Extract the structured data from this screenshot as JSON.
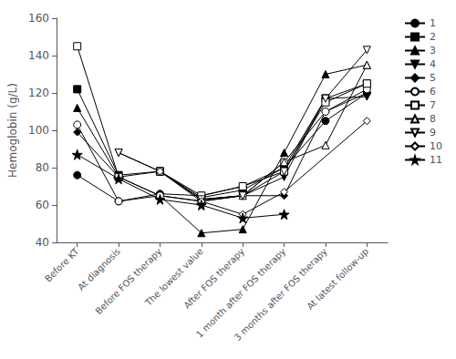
{
  "chart_data": {
    "type": "line",
    "categories": [
      "Before KT",
      "At diagnosis",
      "Before FOS therapy",
      "The lowest value",
      "After FOS therapy",
      "1 month after FOS therapy",
      "3 months after FOS therapy",
      "At latest follow-up"
    ],
    "ylabel": "Hemoglobin (g/L)",
    "ylim": [
      40,
      160
    ],
    "yticks": [
      40,
      60,
      80,
      100,
      120,
      140,
      160
    ],
    "grid": false,
    "legend": "right",
    "series": [
      {
        "name": "1",
        "color": "black",
        "marker": "circle-filled",
        "values": [
          76,
          62,
          66,
          65,
          70,
          80,
          105,
          120
        ]
      },
      {
        "name": "2",
        "color": "black",
        "marker": "square-filled",
        "values": [
          122,
          76,
          78,
          64,
          68,
          80,
          117,
          125
        ]
      },
      {
        "name": "3",
        "color": "black",
        "marker": "triangleup-filled",
        "values": [
          112,
          75,
          65,
          45,
          47,
          88,
          130,
          135
        ]
      },
      {
        "name": "4",
        "color": "black",
        "marker": "triangledown-filled",
        "values": [
          null,
          88,
          78,
          63,
          65,
          75,
          117,
          118
        ]
      },
      {
        "name": "5",
        "color": "black",
        "marker": "diamond-filled",
        "values": [
          99,
          75,
          65,
          62,
          65,
          65,
          110,
          120
        ]
      },
      {
        "name": "6",
        "color": "black",
        "marker": "circle-open",
        "values": [
          103,
          62,
          65,
          62,
          65,
          83,
          110,
          122
        ]
      },
      {
        "name": "7",
        "color": "black",
        "marker": "square-open",
        "values": [
          145,
          75,
          78,
          65,
          70,
          78,
          115,
          125
        ]
      },
      {
        "name": "8",
        "color": "black",
        "marker": "triangleup-open",
        "values": [
          null,
          null,
          78,
          63,
          65,
          83,
          92,
          135
        ]
      },
      {
        "name": "9",
        "color": "black",
        "marker": "triangledown-open",
        "values": [
          null,
          88,
          78,
          63,
          65,
          78,
          117,
          143
        ]
      },
      {
        "name": "10",
        "color": "black",
        "marker": "diamond-open",
        "values": [
          null,
          null,
          78,
          62,
          55,
          67,
          null,
          105
        ]
      },
      {
        "name": "11",
        "color": "black",
        "marker": "star-filled",
        "values": [
          87,
          74,
          63,
          60,
          53,
          55,
          null,
          null
        ]
      }
    ]
  }
}
